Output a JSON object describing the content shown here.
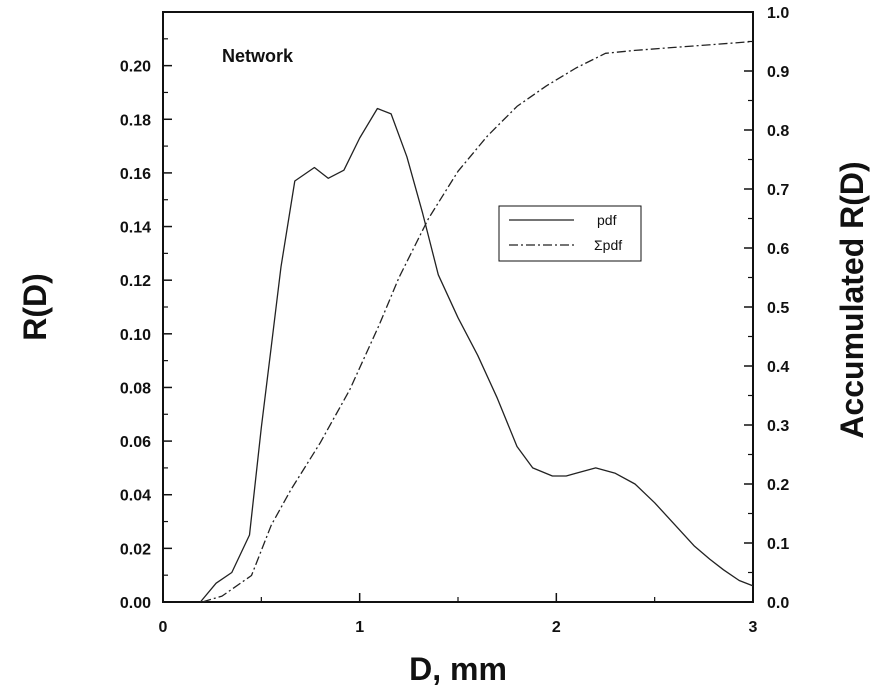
{
  "chart_data": {
    "type": "line",
    "annotation": "Network",
    "xlabel": "D, mm",
    "ylabel_left": "R(D)",
    "ylabel_right": "Accumulated R(D)",
    "xlim": [
      0,
      3
    ],
    "ylim_left": [
      0,
      0.22
    ],
    "ylim_right": [
      0,
      1.0
    ],
    "x_ticks": [
      "0",
      "1",
      "2",
      "3"
    ],
    "y_ticks_left": [
      "0.00",
      "0.02",
      "0.04",
      "0.06",
      "0.08",
      "0.10",
      "0.12",
      "0.14",
      "0.16",
      "0.18",
      "0.20"
    ],
    "y_ticks_right": [
      "0.0",
      "0.1",
      "0.2",
      "0.3",
      "0.4",
      "0.5",
      "0.6",
      "0.7",
      "0.8",
      "0.9",
      "1.0"
    ],
    "legend_position": "right-center",
    "grid": false,
    "series": [
      {
        "name": "pdf",
        "axis": "left",
        "style": "solid",
        "color": "#222222",
        "points": [
          [
            0.19,
            0.0
          ],
          [
            0.27,
            0.007
          ],
          [
            0.35,
            0.011
          ],
          [
            0.44,
            0.025
          ],
          [
            0.5,
            0.065
          ],
          [
            0.55,
            0.095
          ],
          [
            0.6,
            0.125
          ],
          [
            0.67,
            0.157
          ],
          [
            0.77,
            0.162
          ],
          [
            0.84,
            0.158
          ],
          [
            0.92,
            0.161
          ],
          [
            1.0,
            0.173
          ],
          [
            1.09,
            0.184
          ],
          [
            1.16,
            0.182
          ],
          [
            1.24,
            0.166
          ],
          [
            1.32,
            0.145
          ],
          [
            1.4,
            0.122
          ],
          [
            1.5,
            0.106
          ],
          [
            1.6,
            0.092
          ],
          [
            1.7,
            0.076
          ],
          [
            1.8,
            0.058
          ],
          [
            1.88,
            0.05
          ],
          [
            1.98,
            0.047
          ],
          [
            2.05,
            0.047
          ],
          [
            2.1,
            0.048
          ],
          [
            2.2,
            0.05
          ],
          [
            2.3,
            0.048
          ],
          [
            2.4,
            0.044
          ],
          [
            2.5,
            0.037
          ],
          [
            2.6,
            0.029
          ],
          [
            2.7,
            0.021
          ],
          [
            2.78,
            0.016
          ],
          [
            2.85,
            0.012
          ],
          [
            2.93,
            0.008
          ],
          [
            3.0,
            0.006
          ]
        ]
      },
      {
        "name": "Σpdf",
        "axis": "right",
        "style": "dashdot",
        "color": "#222222",
        "points": [
          [
            0.2,
            0.0
          ],
          [
            0.3,
            0.01
          ],
          [
            0.45,
            0.045
          ],
          [
            0.55,
            0.13
          ],
          [
            0.65,
            0.19
          ],
          [
            0.8,
            0.27
          ],
          [
            0.95,
            0.36
          ],
          [
            1.1,
            0.47
          ],
          [
            1.2,
            0.55
          ],
          [
            1.35,
            0.65
          ],
          [
            1.5,
            0.73
          ],
          [
            1.65,
            0.79
          ],
          [
            1.8,
            0.84
          ],
          [
            1.95,
            0.875
          ],
          [
            2.1,
            0.905
          ],
          [
            2.25,
            0.93
          ],
          [
            2.4,
            0.935
          ],
          [
            2.6,
            0.94
          ],
          [
            2.8,
            0.945
          ],
          [
            3.0,
            0.95
          ]
        ]
      }
    ]
  }
}
